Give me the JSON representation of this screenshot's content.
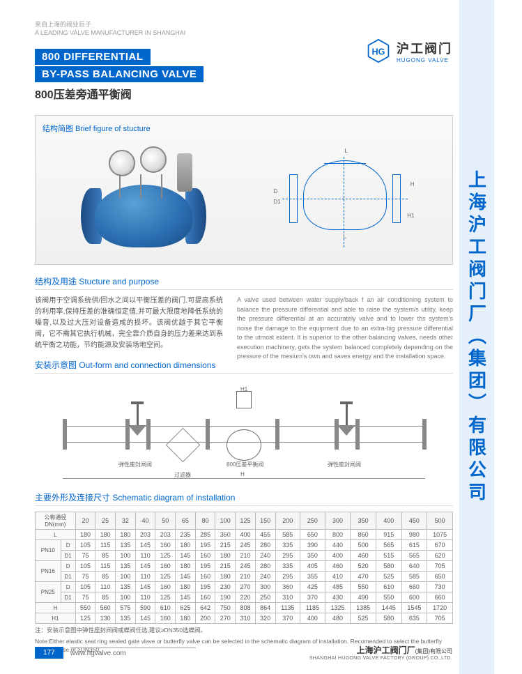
{
  "header": {
    "tag_cn": "来自上海的阀业巨子",
    "tag_en": "A LEADING VALVE MANUFACTURER IN SHANGHAI",
    "logo_cn": "沪工阀门",
    "logo_en": "HUGONG VALVE"
  },
  "title": {
    "en1": "800 DIFFERENTIAL",
    "en2": "BY-PASS BALANCING VALVE",
    "cn": "800压差旁通平衡阀"
  },
  "side_company": "上海沪工阀门厂（集团）有限公司",
  "brief_figure": {
    "label": "结构简图  Brief figure of stucture"
  },
  "purpose": {
    "title": "结构及用途  Stucture and purpose",
    "cn": "该阀用于空调系统供/回水之间以平衡压差的阀门,可提高系统的利用率,保持压差的准确恒定值,并可最大限度地降低系统的噪音,以及过大压对设备造成的损坏。该阀优越于其它平衡阀，它不需其它执行机械，完全靠介质自身的压力差来达到系统平衡之功能，节约能源及安装场地空间。",
    "en": "A valve used between water supply/back f an air conditioning system to balance the pressure differential and able to raise the system/s utility, keep the pressure differential at an accurately valve and to lower ths system's noise the damage to the equipment due to an extra-big pressure differential to the utmost extent. It is superior to the other balancing valves, needs other execution machinery, gets the system balanced completely depending on the pressure of the mesium's own and saves energy and the installation space."
  },
  "outform": {
    "title": "安装示意图  Out-form and connection dimensions",
    "labels": {
      "gate_l": "弹性座封闸阀",
      "strainer": "过滤器",
      "center": "800压差平衡阀",
      "gate_r": "弹性座封闸阀"
    }
  },
  "table": {
    "title": "主要外形及连接尺寸  Schematic diagram of installation",
    "header_dn_cn": "公称通径",
    "header_dn_en": "DN(mm)",
    "columns": [
      "20",
      "25",
      "32",
      "40",
      "50",
      "65",
      "80",
      "100",
      "125",
      "150",
      "200",
      "250",
      "300",
      "350",
      "400",
      "450",
      "500"
    ],
    "rows": [
      {
        "pn": "",
        "label": "L",
        "v": [
          "180",
          "180",
          "180",
          "203",
          "203",
          "235",
          "285",
          "360",
          "400",
          "455",
          "585",
          "650",
          "800",
          "860",
          "915",
          "980",
          "1075"
        ]
      },
      {
        "pn": "PN10",
        "label": "D",
        "v": [
          "105",
          "115",
          "135",
          "145",
          "160",
          "180",
          "195",
          "215",
          "245",
          "280",
          "335",
          "390",
          "440",
          "500",
          "565",
          "615",
          "670"
        ]
      },
      {
        "pn": "PN10",
        "label": "D1",
        "v": [
          "75",
          "85",
          "100",
          "110",
          "125",
          "145",
          "160",
          "180",
          "210",
          "240",
          "295",
          "350",
          "400",
          "460",
          "515",
          "565",
          "620"
        ]
      },
      {
        "pn": "PN16",
        "label": "D",
        "v": [
          "105",
          "115",
          "135",
          "145",
          "160",
          "180",
          "195",
          "215",
          "245",
          "280",
          "335",
          "405",
          "460",
          "520",
          "580",
          "640",
          "705"
        ]
      },
      {
        "pn": "PN16",
        "label": "D1",
        "v": [
          "75",
          "85",
          "100",
          "110",
          "125",
          "145",
          "160",
          "180",
          "210",
          "240",
          "295",
          "355",
          "410",
          "470",
          "525",
          "585",
          "650"
        ]
      },
      {
        "pn": "PN25",
        "label": "D",
        "v": [
          "105",
          "110",
          "135",
          "145",
          "160",
          "180",
          "195",
          "230",
          "270",
          "300",
          "360",
          "425",
          "485",
          "550",
          "610",
          "660",
          "730"
        ]
      },
      {
        "pn": "PN25",
        "label": "D1",
        "v": [
          "75",
          "85",
          "100",
          "110",
          "125",
          "145",
          "160",
          "190",
          "220",
          "250",
          "310",
          "370",
          "430",
          "490",
          "550",
          "600",
          "660"
        ]
      },
      {
        "pn": "",
        "label": "H",
        "v": [
          "550",
          "560",
          "575",
          "590",
          "610",
          "625",
          "642",
          "750",
          "808",
          "864",
          "1135",
          "1185",
          "1325",
          "1385",
          "1445",
          "1545",
          "1720"
        ]
      },
      {
        "pn": "",
        "label": "H1",
        "v": [
          "125",
          "130",
          "135",
          "145",
          "160",
          "180",
          "200",
          "270",
          "310",
          "320",
          "370",
          "400",
          "480",
          "525",
          "580",
          "635",
          "705"
        ]
      }
    ],
    "note_cn": "注：安装示意图中弹性座封闸阀或蝶阀任选,建议≥DN350选蝶阀。",
    "note_en": "Note:Either elastic seat ring sealed gate vlave or butterfly valve can be selected in the schematic diagram of installation. Recomended to select the butterfly valve in case of ≥DN350."
  },
  "footer": {
    "page": "177",
    "web": "www.hgvalve.com",
    "company_cn": "上海沪工阀门厂",
    "company_suffix": "(集团)有限公司",
    "company_en": "SHANGHAI HUGONG VALVE FACTORY (GROUP) CO.,LTD."
  },
  "colors": {
    "brand": "#0066cc",
    "text": "#555",
    "light": "#888"
  }
}
